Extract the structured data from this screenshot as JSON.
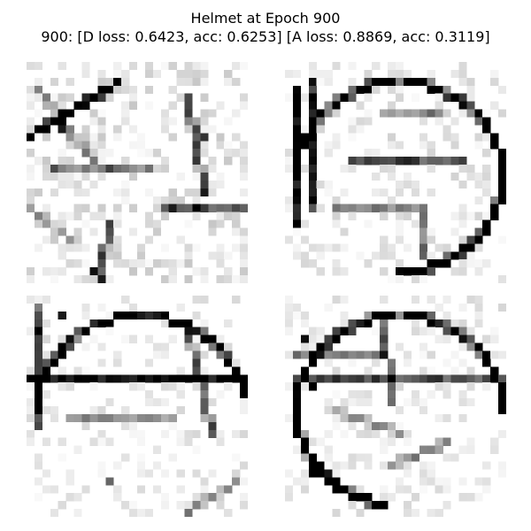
{
  "figure": {
    "title_line1": "Helmet at Epoch 900",
    "title_line2": "900: [D loss: 0.6423, acc: 0.6253]  [A loss: 0.8869, acc: 0.3119]"
  },
  "samples": [
    {
      "id": "sample-1",
      "description_color_scale": "grayscale-inverted"
    },
    {
      "id": "sample-2",
      "description_color_scale": "grayscale-inverted"
    },
    {
      "id": "sample-3",
      "description_color_scale": "grayscale-inverted"
    },
    {
      "id": "sample-4",
      "description_color_scale": "grayscale-inverted"
    }
  ],
  "colors": {
    "background": "#ffffff",
    "ink": "#000000"
  }
}
